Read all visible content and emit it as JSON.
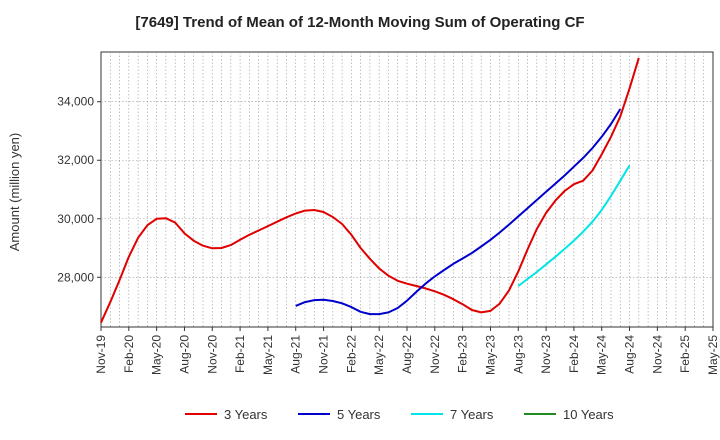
{
  "chart_data": {
    "type": "line",
    "title": "[7649]  Trend of Mean of 12-Month Moving Sum of Operating CF",
    "xlabel": "",
    "ylabel": "Amount (million yen)",
    "ylim": [
      26300,
      35700
    ],
    "yticks": [
      28000,
      30000,
      32000,
      34000
    ],
    "ytick_labels": [
      "28,000",
      "30,000",
      "32,000",
      "34,000"
    ],
    "x_start": "2019-11",
    "x_end": "2025-05",
    "xtick_labels": [
      "Nov-19",
      "Feb-20",
      "May-20",
      "Aug-20",
      "Nov-20",
      "Feb-21",
      "May-21",
      "Aug-21",
      "Nov-21",
      "Feb-22",
      "May-22",
      "Aug-22",
      "Nov-22",
      "Feb-23",
      "May-23",
      "Aug-23",
      "Nov-23",
      "Feb-24",
      "May-24",
      "Aug-24",
      "Nov-24",
      "Feb-25",
      "May-25"
    ],
    "grid": true,
    "legend_position": "bottom",
    "series": [
      {
        "name": "3 Years",
        "color": "#e00000",
        "start": 0,
        "values": [
          26450,
          27150,
          27900,
          28700,
          29350,
          29780,
          30000,
          30020,
          29870,
          29500,
          29250,
          29080,
          28990,
          29000,
          29100,
          29280,
          29450,
          29600,
          29750,
          29900,
          30050,
          30180,
          30280,
          30300,
          30230,
          30060,
          29820,
          29450,
          29000,
          28630,
          28300,
          28050,
          27880,
          27780,
          27700,
          27620,
          27520,
          27400,
          27250,
          27080,
          26880,
          26800,
          26850,
          27100,
          27550,
          28200,
          28950,
          29650,
          30200,
          30620,
          30950,
          31180,
          31300,
          31650,
          32200,
          32800,
          33500,
          34450,
          35500
        ]
      },
      {
        "name": "5 Years",
        "color": "#0000cc",
        "start": 21,
        "values": [
          27020,
          27150,
          27220,
          27230,
          27190,
          27110,
          26980,
          26820,
          26740,
          26740,
          26800,
          26950,
          27200,
          27500,
          27780,
          28030,
          28250,
          28460,
          28640,
          28830,
          29050,
          29280,
          29530,
          29800,
          30080,
          30360,
          30640,
          30920,
          31200,
          31480,
          31780,
          32080,
          32420,
          32800,
          33240,
          33750
        ]
      },
      {
        "name": "7 Years",
        "color": "#00e5e5",
        "start": 45,
        "values": [
          27700,
          27940,
          28180,
          28440,
          28700,
          28970,
          29250,
          29560,
          29900,
          30300,
          30780,
          31300,
          31820
        ]
      },
      {
        "name": "10 Years",
        "color": "#228b22",
        "start": 0,
        "values": []
      }
    ]
  }
}
